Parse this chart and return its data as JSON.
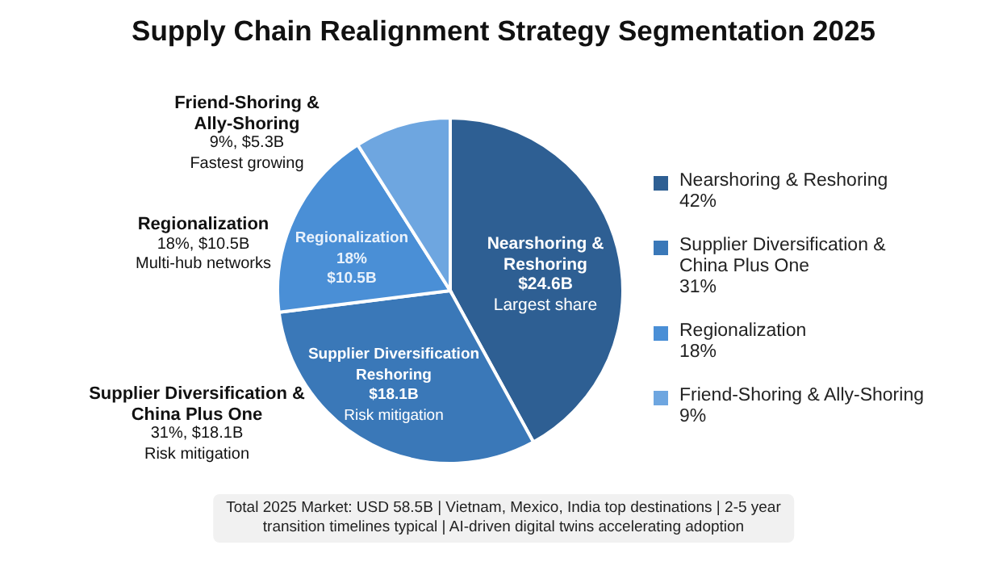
{
  "chart_data": {
    "type": "pie",
    "title": "Supply Chain Realignment Strategy Segmentation 2025",
    "categories": [
      "Nearshoring & Reshoring",
      "Supplier Diversification & China Plus One",
      "Regionalization",
      "Friend-Shoring & Ally-Shoring"
    ],
    "values": [
      42,
      31,
      18,
      9
    ],
    "value_labels": [
      "42%",
      "31%",
      "18%",
      "9%"
    ],
    "colors": [
      "#2e5f93",
      "#3a78b8",
      "#4a8fd6",
      "#6ea6e0"
    ],
    "legend": "right",
    "annotations": [
      "Nearshoring &\nReshoring\n$24.6B\nLargest share",
      "Supplier Diversification\nReshoring\n$18.1B\nRisk mitigation",
      "Regionalization\n18%\n$10.5B",
      "Friend-Shoring &\nAlly-Shoring\n9%, $5.3B\nFastest growing",
      "Regionalization\n18%, $10.5B\nMulti-hub networks",
      "Supplier Diversification &\nChina Plus One\n31%, $18.1B\nRisk mitigation",
      "Total 2025 Market: USD 58.5B | Vietnam, Mexico, India top destinations | 2-5 year\ntransition timelines typical | AI-driven digital twins accelerating adoption"
    ]
  }
}
